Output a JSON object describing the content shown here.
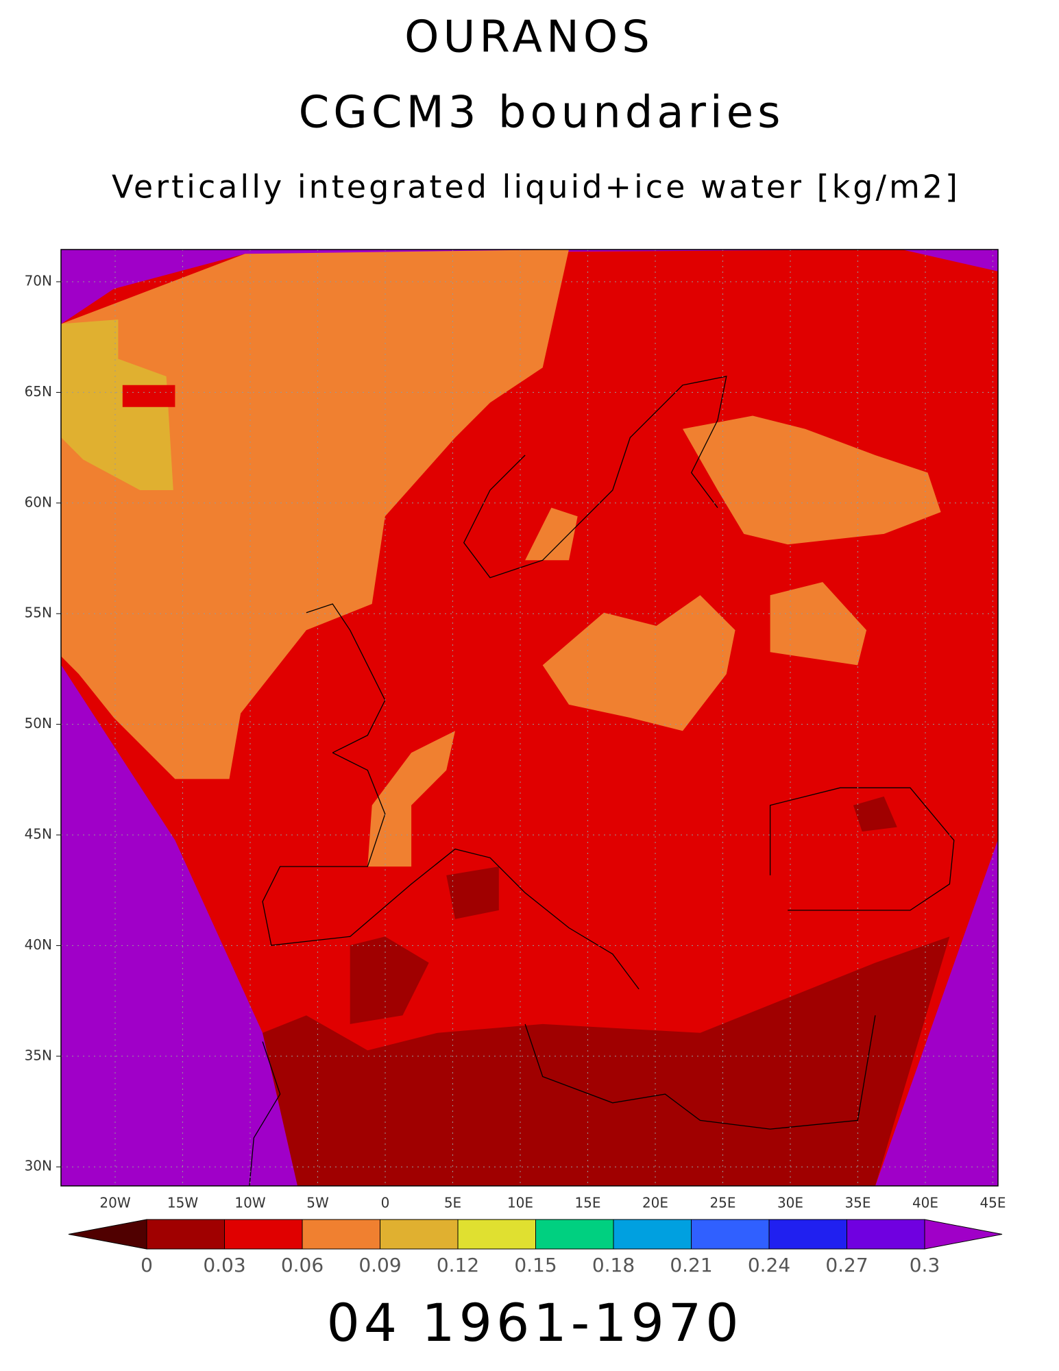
{
  "title": "OURANOS",
  "subtitle": "CGCM3 boundaries",
  "variable": "Vertically integrated liquid+ice water [kg/m2]",
  "lat_labels": [
    "70N",
    "65N",
    "60N",
    "55N",
    "50N",
    "45N",
    "40N",
    "35N",
    "30N"
  ],
  "lon_labels": [
    "20W",
    "15W",
    "10W",
    "5W",
    "0",
    "5E",
    "10E",
    "15E",
    "20E",
    "25E",
    "30E",
    "35E",
    "40E",
    "45E"
  ],
  "colorbar": {
    "levels": [
      0,
      0.03,
      0.06,
      0.09,
      0.12,
      0.15,
      0.18,
      0.21,
      0.24,
      0.27,
      0.3
    ],
    "colors": [
      "#500000",
      "#a00000",
      "#e00000",
      "#f08030",
      "#e0b030",
      "#e0e030",
      "#00d080",
      "#00a0e0",
      "#3060ff",
      "#2020f0",
      "#7000e0",
      "#a000c8"
    ]
  },
  "footer": "04 1961-1970"
}
